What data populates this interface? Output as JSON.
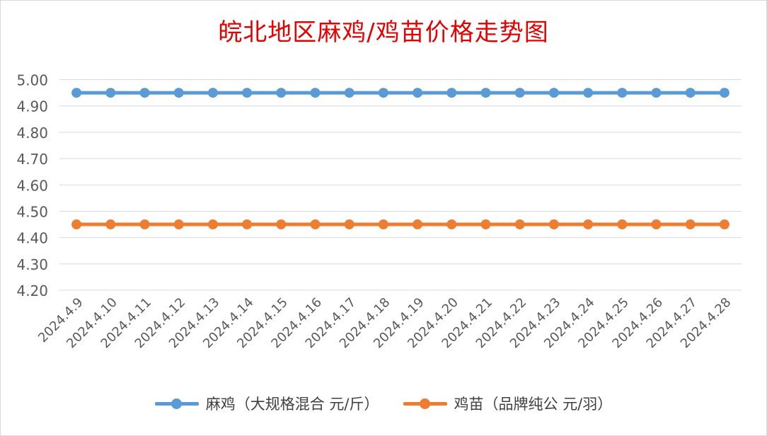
{
  "chart_data": {
    "type": "line",
    "title": "皖北地区麻鸡/鸡苗价格走势图",
    "categories": [
      "2024.4.9",
      "2024.4.10",
      "2024.4.11",
      "2024.4.12",
      "2024.4.13",
      "2024.4.14",
      "2024.4.15",
      "2024.4.16",
      "2024.4.17",
      "2024.4.18",
      "2024.4.19",
      "2024.4.20",
      "2024.4.21",
      "2024.4.22",
      "2024.4.23",
      "2024.4.24",
      "2024.4.25",
      "2024.4.26",
      "2024.4.27",
      "2024.4.28"
    ],
    "series": [
      {
        "name": "麻鸡（大规格混合 元/斤）",
        "color": "#5b9bd5",
        "values": [
          4.95,
          4.95,
          4.95,
          4.95,
          4.95,
          4.95,
          4.95,
          4.95,
          4.95,
          4.95,
          4.95,
          4.95,
          4.95,
          4.95,
          4.95,
          4.95,
          4.95,
          4.95,
          4.95,
          4.95
        ]
      },
      {
        "name": "鸡苗（品牌纯公 元/羽）",
        "color": "#ed7d31",
        "values": [
          4.45,
          4.45,
          4.45,
          4.45,
          4.45,
          4.45,
          4.45,
          4.45,
          4.45,
          4.45,
          4.45,
          4.45,
          4.45,
          4.45,
          4.45,
          4.45,
          4.45,
          4.45,
          4.45,
          4.45
        ]
      }
    ],
    "yticks": [
      "4.20",
      "4.30",
      "4.40",
      "4.50",
      "4.60",
      "4.70",
      "4.80",
      "4.90",
      "5.00"
    ],
    "ylim": [
      4.2,
      5.0
    ],
    "grid": true,
    "legend_position": "bottom",
    "title_color": "#e60000"
  }
}
